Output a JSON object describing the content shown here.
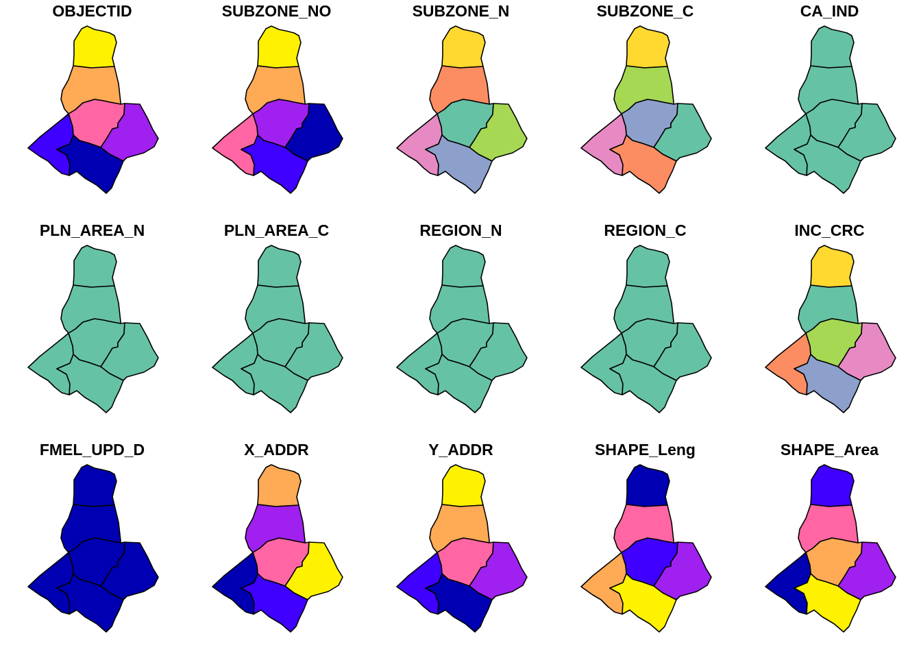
{
  "colors": {
    "yellow": "#FFF200",
    "orange": "#FFAA55",
    "pink": "#FF66A3",
    "purple": "#A020F0",
    "blue": "#3F00FF",
    "navy": "#0000B2",
    "s_teal": "#66C2A5",
    "s_salmon": "#FC8D62",
    "s_lavender": "#8DA0CB",
    "s_mauve": "#E78AC3",
    "s_green": "#A6D854",
    "s_gold": "#FFD92F"
  },
  "panels": [
    {
      "title": "OBJECTID",
      "fills": [
        "yellow",
        "orange",
        "pink",
        "purple",
        "blue",
        "navy"
      ]
    },
    {
      "title": "SUBZONE_NO",
      "fills": [
        "yellow",
        "orange",
        "purple",
        "navy",
        "pink",
        "blue"
      ]
    },
    {
      "title": "SUBZONE_N",
      "fills": [
        "s_gold",
        "s_salmon",
        "s_teal",
        "s_green",
        "s_mauve",
        "s_lavender"
      ]
    },
    {
      "title": "SUBZONE_C",
      "fills": [
        "s_gold",
        "s_green",
        "s_lavender",
        "s_teal",
        "s_mauve",
        "s_salmon"
      ]
    },
    {
      "title": "CA_IND",
      "fills": [
        "s_teal",
        "s_teal",
        "s_teal",
        "s_teal",
        "s_teal",
        "s_teal"
      ]
    },
    {
      "title": "PLN_AREA_N",
      "fills": [
        "s_teal",
        "s_teal",
        "s_teal",
        "s_teal",
        "s_teal",
        "s_teal"
      ]
    },
    {
      "title": "PLN_AREA_C",
      "fills": [
        "s_teal",
        "s_teal",
        "s_teal",
        "s_teal",
        "s_teal",
        "s_teal"
      ]
    },
    {
      "title": "REGION_N",
      "fills": [
        "s_teal",
        "s_teal",
        "s_teal",
        "s_teal",
        "s_teal",
        "s_teal"
      ]
    },
    {
      "title": "REGION_C",
      "fills": [
        "s_teal",
        "s_teal",
        "s_teal",
        "s_teal",
        "s_teal",
        "s_teal"
      ]
    },
    {
      "title": "INC_CRC",
      "fills": [
        "s_gold",
        "s_teal",
        "s_green",
        "s_mauve",
        "s_salmon",
        "s_lavender"
      ]
    },
    {
      "title": "FMEL_UPD_D",
      "fills": [
        "navy",
        "navy",
        "navy",
        "navy",
        "navy",
        "navy"
      ]
    },
    {
      "title": "X_ADDR",
      "fills": [
        "orange",
        "purple",
        "pink",
        "yellow",
        "navy",
        "blue"
      ]
    },
    {
      "title": "Y_ADDR",
      "fills": [
        "yellow",
        "orange",
        "pink",
        "purple",
        "blue",
        "navy"
      ]
    },
    {
      "title": "SHAPE_Leng",
      "fills": [
        "navy",
        "pink",
        "blue",
        "purple",
        "orange",
        "yellow"
      ]
    },
    {
      "title": "SHAPE_Area",
      "fills": [
        "blue",
        "pink",
        "orange",
        "purple",
        "navy",
        "yellow"
      ]
    }
  ]
}
